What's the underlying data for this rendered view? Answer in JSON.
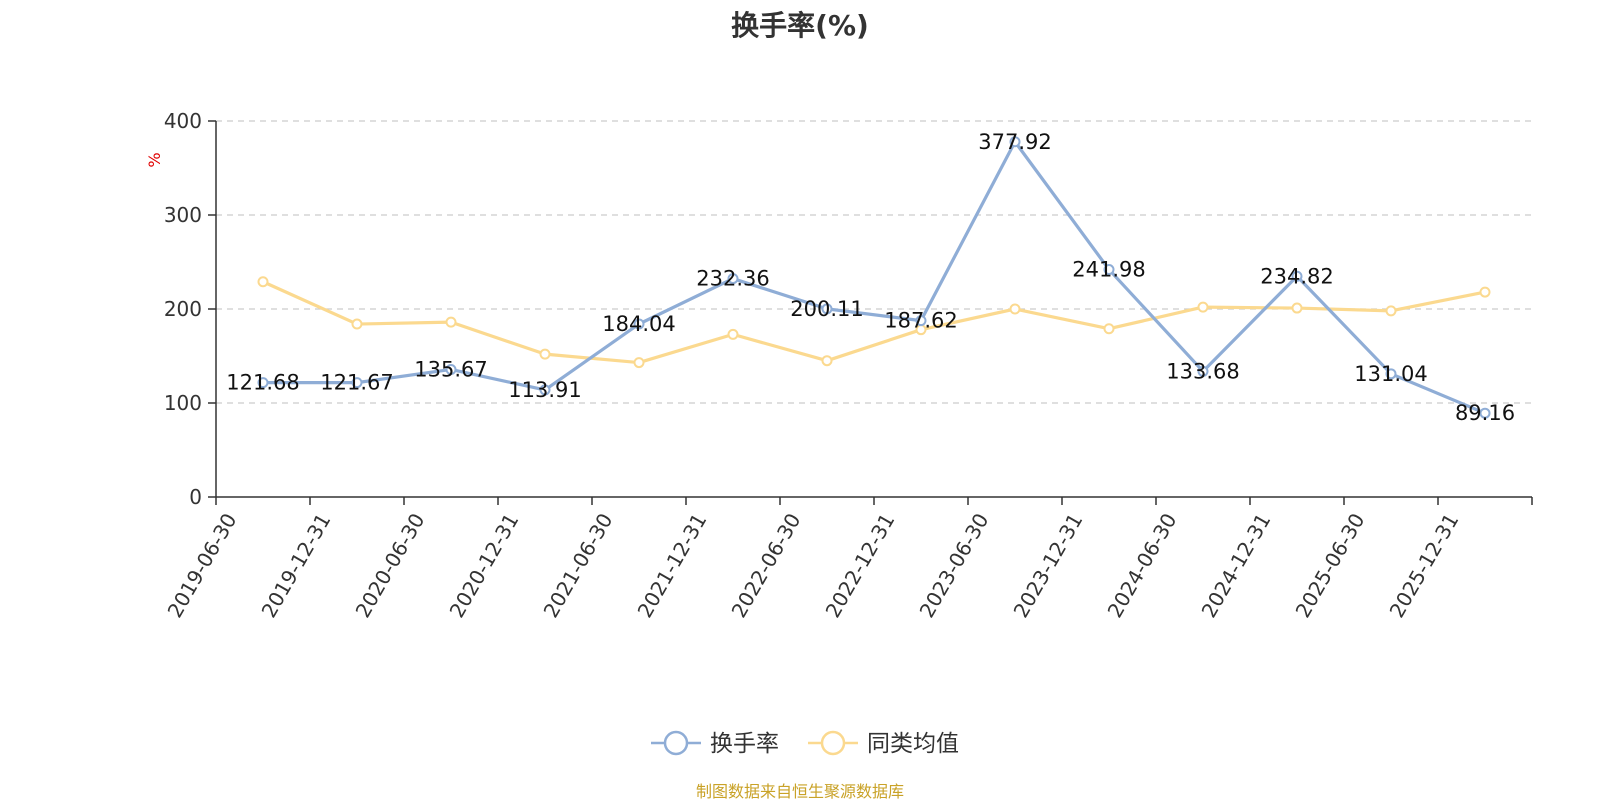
{
  "chart_data": {
    "type": "line",
    "title": "换手率(%)",
    "ylabel": "%",
    "ylim": [
      0,
      400
    ],
    "yticks": [
      0,
      100,
      200,
      300,
      400
    ],
    "grid": true,
    "legend_position": "bottom-center",
    "categories": [
      "2019-06-30",
      "2019-12-31",
      "2020-06-30",
      "2020-12-31",
      "2021-06-30",
      "2021-12-31",
      "2022-06-30",
      "2022-12-31",
      "2023-06-30",
      "2023-12-31",
      "2024-06-30",
      "2024-12-31",
      "2025-06-30",
      "2025-12-31"
    ],
    "series": [
      {
        "name": "换手率",
        "color": "#8fadd6",
        "values": [
          121.68,
          121.67,
          135.67,
          113.91,
          184.04,
          232.36,
          200.11,
          187.62,
          377.92,
          241.98,
          133.68,
          234.82,
          131.04,
          89.16
        ],
        "labels": [
          "121.68",
          "121.67",
          "135.67",
          "113.91",
          "184.04",
          "232.36",
          "200.11",
          "187.62",
          "377.92",
          "241.98",
          "133.68",
          "234.82",
          "131.04",
          "89.16"
        ]
      },
      {
        "name": "同类均值",
        "color": "#fbd98f",
        "values": [
          229,
          184,
          186,
          152,
          143,
          173,
          145,
          178,
          200,
          179,
          202,
          201,
          198,
          218
        ]
      }
    ]
  },
  "source_note": "制图数据来自恒生聚源数据库"
}
